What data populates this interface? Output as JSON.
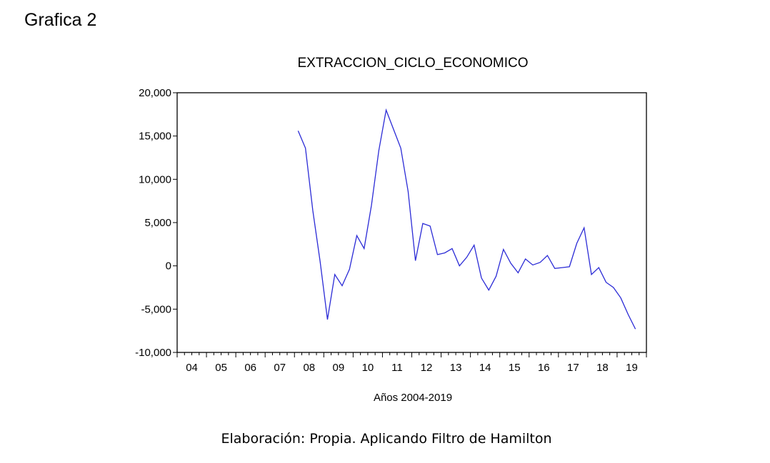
{
  "page": {
    "heading": "Grafica 2",
    "caption": "Elaboración: Propia. Aplicando Filtro de Hamilton"
  },
  "chart_data": {
    "type": "line",
    "title": "EXTRACCION_CICLO_ECONOMICO",
    "xlabel": "Años 2004-2019",
    "ylabel": "",
    "ylim": [
      -10000,
      20000
    ],
    "yticks": [
      20000,
      15000,
      10000,
      5000,
      0,
      -5000,
      -10000
    ],
    "ytick_labels": [
      "20,000",
      "15,000",
      "10,000",
      "5,000",
      "0",
      "-5,000",
      "-10,000"
    ],
    "x_start_year": 2004,
    "x_end_year": 2019,
    "xtick_labels": [
      "04",
      "05",
      "06",
      "07",
      "08",
      "09",
      "10",
      "11",
      "12",
      "13",
      "14",
      "15",
      "16",
      "17",
      "18",
      "19"
    ],
    "grid": false,
    "line_color": "#2b2bd6",
    "series": [
      {
        "start": "2008Q1",
        "values": [
          15600,
          13600,
          6400,
          500,
          -6200,
          -1000,
          -2300,
          -400,
          3500,
          2000,
          7000,
          13300,
          18000,
          15800,
          13600,
          8600,
          600,
          4900,
          4600,
          1300,
          1500,
          2000,
          0,
          1000,
          2400,
          -1400,
          -2800,
          -1200,
          1900,
          300,
          -800,
          800,
          100,
          400,
          1200,
          -300,
          -200,
          -100,
          2600,
          4400,
          -1000,
          -200,
          -1900,
          -2500,
          -3700,
          -5600,
          -7300
        ]
      }
    ]
  }
}
